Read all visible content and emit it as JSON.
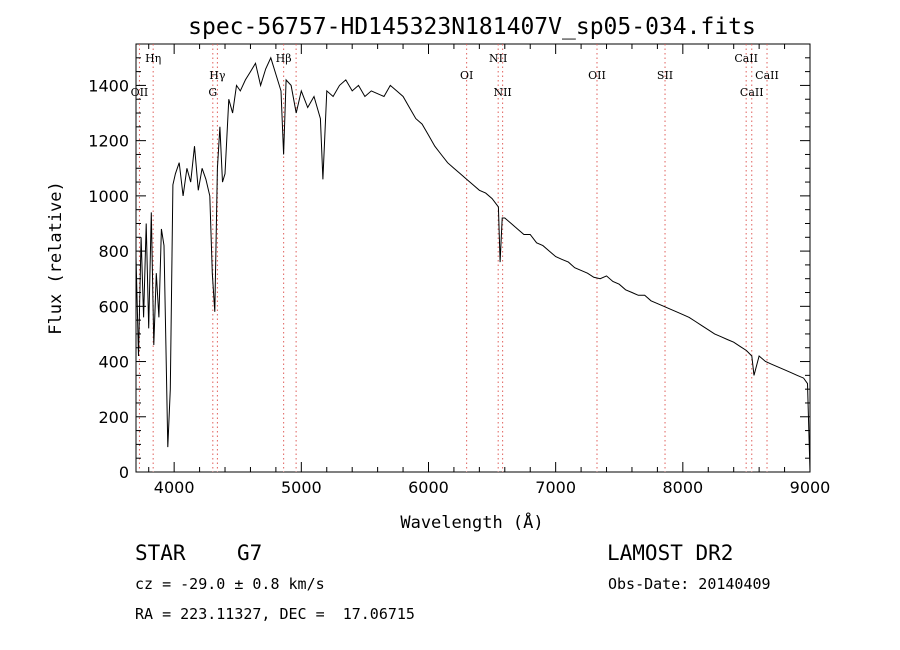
{
  "chart_data": {
    "type": "line",
    "title": "spec-56757-HD145323N181407V_sp05-034.fits",
    "xlabel": "Wavelength (Å)",
    "ylabel": "Flux (relative)",
    "xlim": [
      3700,
      9000
    ],
    "ylim": [
      0,
      1550
    ],
    "xticks": [
      4000,
      5000,
      6000,
      7000,
      8000,
      9000
    ],
    "yticks": [
      0,
      200,
      400,
      600,
      800,
      1000,
      1200,
      1400
    ],
    "grid": false,
    "series_color": "#000000",
    "line_marker_color": "#e0605c",
    "spectrum": {
      "x": [
        3700,
        3720,
        3740,
        3760,
        3780,
        3800,
        3820,
        3840,
        3860,
        3880,
        3900,
        3920,
        3935,
        3950,
        3970,
        3990,
        4010,
        4040,
        4070,
        4100,
        4130,
        4160,
        4190,
        4220,
        4250,
        4280,
        4300,
        4320,
        4340,
        4360,
        4380,
        4400,
        4430,
        4460,
        4490,
        4520,
        4560,
        4600,
        4640,
        4680,
        4720,
        4760,
        4800,
        4840,
        4861,
        4880,
        4920,
        4960,
        5000,
        5050,
        5100,
        5150,
        5170,
        5200,
        5250,
        5300,
        5350,
        5400,
        5450,
        5500,
        5550,
        5600,
        5650,
        5700,
        5750,
        5800,
        5850,
        5900,
        5950,
        6000,
        6050,
        6100,
        6150,
        6200,
        6250,
        6300,
        6350,
        6400,
        6450,
        6500,
        6550,
        6563,
        6580,
        6600,
        6650,
        6700,
        6750,
        6800,
        6850,
        6900,
        6950,
        7000,
        7050,
        7100,
        7150,
        7200,
        7250,
        7300,
        7350,
        7400,
        7450,
        7500,
        7550,
        7600,
        7650,
        7700,
        7750,
        7800,
        7850,
        7900,
        7950,
        8000,
        8050,
        8100,
        8150,
        8200,
        8250,
        8300,
        8350,
        8400,
        8450,
        8500,
        8542,
        8560,
        8600,
        8650,
        8700,
        8750,
        8800,
        8850,
        8900,
        8950,
        8980,
        9000
      ],
      "y": [
        780,
        420,
        850,
        560,
        900,
        520,
        940,
        460,
        720,
        560,
        880,
        820,
        460,
        90,
        300,
        1040,
        1080,
        1120,
        1000,
        1100,
        1050,
        1180,
        1020,
        1100,
        1060,
        1000,
        720,
        580,
        1100,
        1250,
        1050,
        1080,
        1350,
        1300,
        1400,
        1380,
        1420,
        1450,
        1480,
        1400,
        1460,
        1500,
        1440,
        1380,
        1150,
        1420,
        1400,
        1300,
        1380,
        1320,
        1360,
        1280,
        1060,
        1380,
        1360,
        1400,
        1420,
        1380,
        1400,
        1360,
        1380,
        1370,
        1360,
        1400,
        1380,
        1360,
        1320,
        1280,
        1260,
        1220,
        1180,
        1150,
        1120,
        1100,
        1080,
        1060,
        1040,
        1020,
        1010,
        990,
        960,
        760,
        920,
        920,
        900,
        880,
        860,
        860,
        830,
        820,
        800,
        780,
        770,
        760,
        740,
        730,
        720,
        705,
        700,
        710,
        690,
        680,
        660,
        650,
        640,
        640,
        620,
        610,
        600,
        590,
        580,
        570,
        560,
        545,
        530,
        515,
        500,
        490,
        480,
        470,
        455,
        440,
        420,
        350,
        420,
        400,
        390,
        380,
        370,
        360,
        350,
        340,
        320,
        0
      ]
    },
    "line_labels": [
      {
        "text": "Hη",
        "row": "top",
        "x_data": 3835
      },
      {
        "text": "OII",
        "row": "mid",
        "x_data": 3727
      },
      {
        "text": "Hγ",
        "row": "hgamma",
        "x_data": 4340
      },
      {
        "text": "G",
        "row": "g",
        "x_data": 4304
      },
      {
        "text": "Hβ",
        "row": "top",
        "x_data": 4861
      },
      {
        "text": "OI",
        "row": "upper",
        "x_data": 6300
      },
      {
        "text": "NII",
        "row": "top",
        "x_data": 6548
      },
      {
        "text": "NII",
        "row": "mid",
        "x_data": 6583
      },
      {
        "text": "OII",
        "row": "upper",
        "x_data": 7325
      },
      {
        "text": "SII",
        "row": "upper",
        "x_data": 7860
      },
      {
        "text": "CaII",
        "row": "top",
        "x_data": 8498
      },
      {
        "text": "CaII",
        "row": "upper",
        "x_data": 8662
      },
      {
        "text": "CaII",
        "row": "mid",
        "x_data": 8542
      }
    ],
    "marker_lines": [
      3727,
      3835,
      4304,
      4340,
      4861,
      4959,
      6300,
      6548,
      6583,
      7325,
      7860,
      8498,
      8542,
      8662
    ]
  },
  "info": {
    "class_label": "STAR",
    "subclass_label": "G7",
    "survey_label": "LAMOST DR2",
    "cz_text": "cz = -29.0 ± 0.8 km/s",
    "obs_date_text": "Obs-Date: 20140409",
    "coords_text": "RA = 223.11327, DEC =  17.06715"
  }
}
